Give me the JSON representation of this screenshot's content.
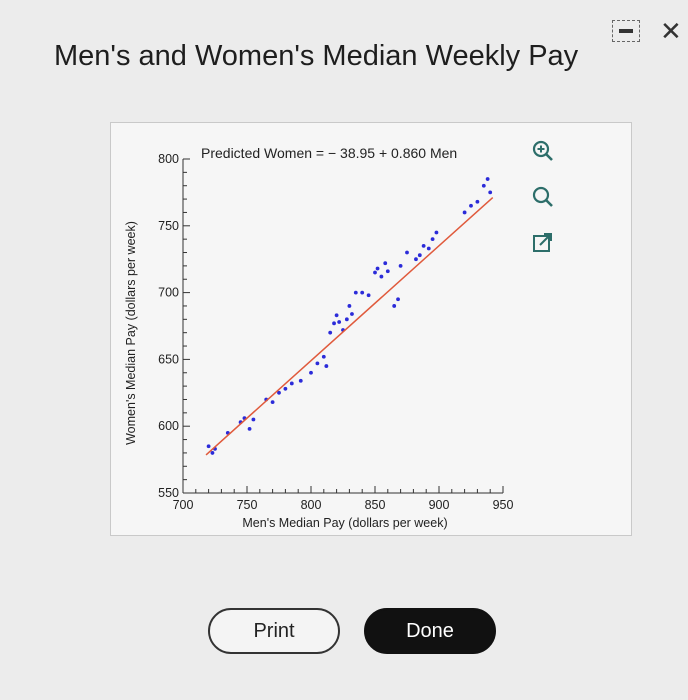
{
  "window": {
    "title": "Men's and Women's Median Weekly Pay",
    "minimize_icon": "minimize-icon",
    "close_icon": "close-icon",
    "close_glyph": "✕"
  },
  "chart_data": {
    "type": "scatter",
    "title": "",
    "equation": "Predicted Women  =  − 38.95 + 0.860 Men",
    "xlabel": "Men's Median Pay (dollars per week)",
    "ylabel": "Women's Median Pay (dollars per week)",
    "xlim": [
      700,
      950
    ],
    "ylim": [
      550,
      800
    ],
    "x_ticks": [
      "700",
      "750",
      "800",
      "850",
      "900",
      "950"
    ],
    "y_ticks": [
      "550",
      "600",
      "650",
      "700",
      "750",
      "800"
    ],
    "grid": false,
    "point_color": "#2b2bd9",
    "line_color": "#e05a3c",
    "regression": {
      "intercept": -38.95,
      "slope": 0.86
    },
    "points": [
      [
        720,
        585
      ],
      [
        723,
        580
      ],
      [
        725,
        583
      ],
      [
        735,
        595
      ],
      [
        745,
        603
      ],
      [
        748,
        606
      ],
      [
        752,
        598
      ],
      [
        755,
        605
      ],
      [
        765,
        620
      ],
      [
        770,
        618
      ],
      [
        775,
        625
      ],
      [
        780,
        628
      ],
      [
        785,
        632
      ],
      [
        792,
        634
      ],
      [
        800,
        640
      ],
      [
        805,
        647
      ],
      [
        810,
        652
      ],
      [
        812,
        645
      ],
      [
        815,
        670
      ],
      [
        818,
        677
      ],
      [
        820,
        683
      ],
      [
        822,
        678
      ],
      [
        825,
        672
      ],
      [
        828,
        680
      ],
      [
        830,
        690
      ],
      [
        832,
        684
      ],
      [
        835,
        700
      ],
      [
        840,
        700
      ],
      [
        845,
        698
      ],
      [
        850,
        715
      ],
      [
        852,
        718
      ],
      [
        855,
        712
      ],
      [
        858,
        722
      ],
      [
        860,
        716
      ],
      [
        865,
        690
      ],
      [
        868,
        695
      ],
      [
        870,
        720
      ],
      [
        875,
        730
      ],
      [
        882,
        725
      ],
      [
        885,
        728
      ],
      [
        888,
        735
      ],
      [
        892,
        733
      ],
      [
        895,
        740
      ],
      [
        898,
        745
      ],
      [
        920,
        760
      ],
      [
        925,
        765
      ],
      [
        930,
        768
      ],
      [
        935,
        780
      ],
      [
        940,
        775
      ],
      [
        938,
        785
      ]
    ]
  },
  "side_icons": [
    "zoom-in-icon",
    "zoom-out-icon",
    "expand-icon"
  ],
  "buttons": {
    "print": "Print",
    "done": "Done"
  },
  "colors": {
    "background": "#ececec",
    "panel": "#f6f6f6",
    "accent_dark": "#111111"
  }
}
